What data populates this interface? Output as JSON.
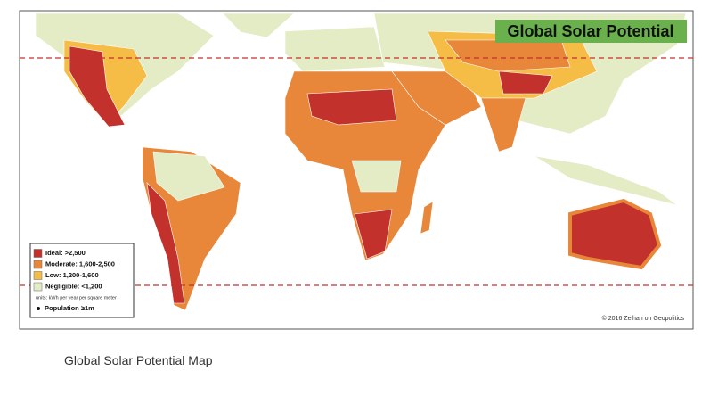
{
  "map": {
    "title": "Global Solar Potential",
    "legend": {
      "items": [
        {
          "label": "Ideal: >2,500",
          "color": "#c2312b"
        },
        {
          "label": "Moderate: 1,600-2,500",
          "color": "#e8873a"
        },
        {
          "label": "Low: 1,200-1,600",
          "color": "#f5bd45"
        },
        {
          "label": "Negligible: <1,200",
          "color": "#e4ecc6"
        }
      ],
      "units": "units: kWh per year per square meter",
      "population": "Population ≥1m"
    },
    "credit": "© 2016 Zeihan on Geopolitics"
  },
  "caption": "Global Solar Potential Map"
}
